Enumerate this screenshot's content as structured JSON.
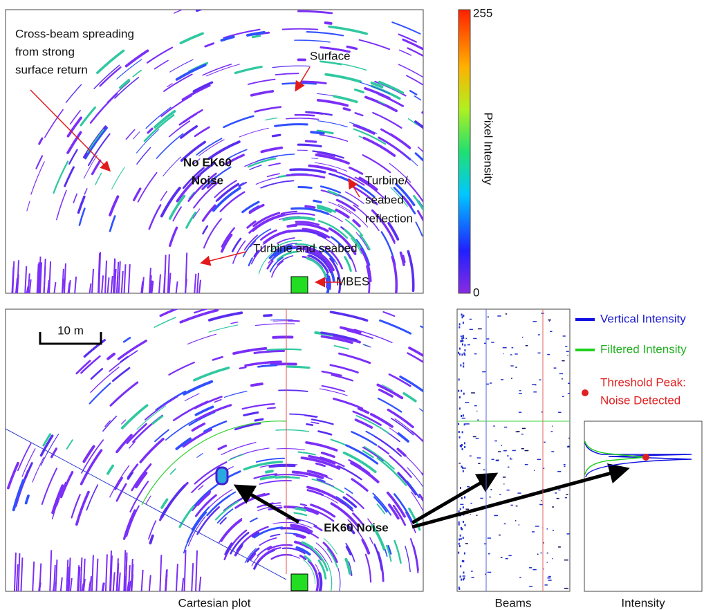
{
  "top_panel": {
    "cross_beam_note": [
      "Cross-beam spreading",
      "from strong",
      "surface return"
    ],
    "surface_note": "Surface",
    "no_noise_note": [
      "No EK60",
      "Noise"
    ],
    "turbine_reflection_note": [
      "Turbine/",
      "seabed",
      "reflection"
    ],
    "turbine_seabed_note": "Turbine and seabed",
    "mbes_note": "MBES"
  },
  "colorbar": {
    "max_label": 255,
    "min_label": 0,
    "title": "Pixel Intensity"
  },
  "bottom_panel": {
    "scale_bar": "10 m",
    "noise_note": "EK60 Noise"
  },
  "legend": {
    "vertical": "Vertical Intensity",
    "filtered": "Filtered Intensity",
    "peak": [
      "Threshold Peak:",
      "Noise Detected"
    ]
  },
  "captions": {
    "cartesian": "Cartesian plot",
    "beams": "Beams",
    "intensity": "Intensity"
  }
}
